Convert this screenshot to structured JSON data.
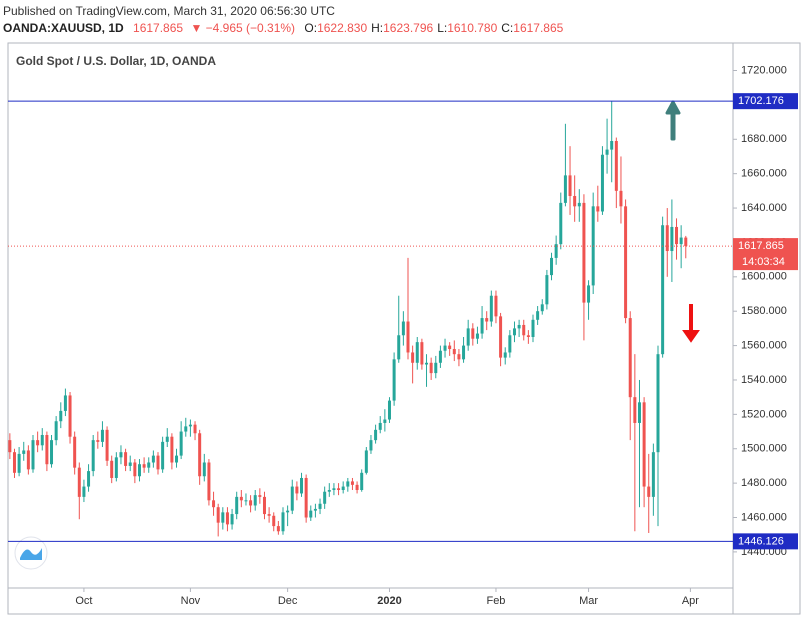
{
  "header": {
    "published": "Published on TradingView.com, March 31, 2020 06:56:30 UTC",
    "symbol": "OANDA:XAUUSD, 1D",
    "last": "1617.865",
    "change": "▼ −4.965 (−0.31%)",
    "ohlc": [
      {
        "label": "O:",
        "value": "1622.830"
      },
      {
        "label": "H:",
        "value": "1623.796"
      },
      {
        "label": "L:",
        "value": "1610.780"
      },
      {
        "label": "C:",
        "value": "1617.865"
      }
    ]
  },
  "chart_data": {
    "type": "candlestick",
    "title": "Gold Spot / U.S. Dollar, 1D, OANDA",
    "up_color": "#26a69a",
    "down_color": "#ef5350",
    "xlim": [
      -0.4,
      156.2
    ],
    "xticks": [
      {
        "value": 16,
        "label": "Oct"
      },
      {
        "value": 39,
        "label": "Nov"
      },
      {
        "value": 60,
        "label": "Dec"
      },
      {
        "value": 82,
        "label": "2020"
      },
      {
        "value": 105,
        "label": "Feb"
      },
      {
        "value": 125,
        "label": "Mar"
      },
      {
        "value": 147,
        "label": "Apr"
      }
    ],
    "ylim": [
      1419,
      1736
    ],
    "yticks": [
      {
        "value": 1440,
        "label": "1440.000"
      },
      {
        "value": 1460,
        "label": "1460.000"
      },
      {
        "value": 1480,
        "label": "1480.000"
      },
      {
        "value": 1500,
        "label": "1500.000"
      },
      {
        "value": 1520,
        "label": "1520.000"
      },
      {
        "value": 1540,
        "label": "1540.000"
      },
      {
        "value": 1560,
        "label": "1560.000"
      },
      {
        "value": 1580,
        "label": "1580.000"
      },
      {
        "value": 1600,
        "label": "1600.000"
      },
      {
        "value": 1620,
        "label": "1620.000"
      },
      {
        "value": 1640,
        "label": "1640.000"
      },
      {
        "value": 1660,
        "label": "1660.000"
      },
      {
        "value": 1680,
        "label": "1680.000"
      },
      {
        "value": 1700,
        "label": "1700.000"
      },
      {
        "value": 1720,
        "label": "1720.000"
      }
    ],
    "hlines": [
      {
        "value": 1702.176,
        "color": "#1f2cc4"
      },
      {
        "value": 1446.126,
        "color": "#1f2cc4"
      }
    ],
    "countdown": "14:03:34",
    "open": [
      1505,
      1498,
      1486,
      1497,
      1499,
      1488,
      1505,
      1502,
      1508,
      1491,
      1505,
      1516,
      1522,
      1531,
      1507,
      1489,
      1472,
      1478,
      1487,
      1505,
      1504,
      1511,
      1493,
      1483,
      1495,
      1498,
      1490,
      1492,
      1484,
      1491,
      1489,
      1492,
      1496,
      1488,
      1504,
      1507,
      1492,
      1496,
      1510,
      1513,
      1514,
      1509,
      1484,
      1492,
      1470,
      1466,
      1457,
      1463,
      1456,
      1462,
      1472,
      1470,
      1470,
      1467,
      1473,
      1472,
      1462,
      1461,
      1455,
      1452,
      1463,
      1464,
      1478,
      1474,
      1483,
      1460,
      1464,
      1465,
      1468,
      1475,
      1476,
      1477,
      1476,
      1478,
      1481,
      1479,
      1476,
      1486,
      1499,
      1505,
      1511,
      1515,
      1517,
      1528,
      1552,
      1566,
      1574,
      1556,
      1550,
      1562,
      1549,
      1550,
      1544,
      1550,
      1557,
      1560,
      1558,
      1555,
      1552,
      1560,
      1570,
      1564,
      1567,
      1576,
      1574,
      1589,
      1577,
      1553,
      1556,
      1566,
      1570,
      1572,
      1566,
      1565,
      1575,
      1580,
      1584,
      1601,
      1611,
      1619,
      1643,
      1659,
      1647,
      1641,
      1643,
      1585,
      1595,
      1641,
      1638,
      1671,
      1674,
      1679,
      1650,
      1641,
      1576,
      1530,
      1515,
      1527,
      1478,
      1472,
      1498,
      1555,
      1630,
      1615,
      1629,
      1619,
      1622.83
    ],
    "high": [
      1509,
      1500,
      1501,
      1504,
      1502,
      1508,
      1510,
      1512,
      1510,
      1508,
      1519,
      1527,
      1535,
      1533,
      1510,
      1492,
      1482,
      1491,
      1508,
      1510,
      1516,
      1513,
      1496,
      1498,
      1502,
      1500,
      1496,
      1494,
      1494,
      1495,
      1495,
      1499,
      1498,
      1507,
      1512,
      1509,
      1500,
      1516,
      1518,
      1517,
      1516,
      1511,
      1497,
      1494,
      1475,
      1468,
      1466,
      1466,
      1465,
      1475,
      1476,
      1474,
      1473,
      1476,
      1477,
      1475,
      1466,
      1463,
      1458,
      1466,
      1467,
      1482,
      1481,
      1486,
      1485,
      1467,
      1468,
      1471,
      1478,
      1480,
      1480,
      1480,
      1481,
      1483,
      1483,
      1481,
      1488,
      1501,
      1508,
      1514,
      1519,
      1523,
      1530,
      1556,
      1589,
      1580,
      1611,
      1560,
      1565,
      1564,
      1555,
      1553,
      1554,
      1560,
      1564,
      1562,
      1563,
      1558,
      1565,
      1575,
      1573,
      1571,
      1583,
      1580,
      1592,
      1592,
      1579,
      1559,
      1569,
      1574,
      1575,
      1575,
      1569,
      1578,
      1583,
      1587,
      1604,
      1614,
      1624,
      1649,
      1689,
      1676,
      1659,
      1651,
      1648,
      1598,
      1649,
      1653,
      1676,
      1692,
      1702,
      1681,
      1670,
      1645,
      1580,
      1555,
      1540,
      1530,
      1497,
      1503,
      1560,
      1635,
      1640,
      1645,
      1634,
      1630,
      1623.796
    ],
    "low": [
      1494,
      1483,
      1484,
      1493,
      1485,
      1486,
      1498,
      1499,
      1487,
      1489,
      1502,
      1512,
      1519,
      1503,
      1485,
      1459,
      1469,
      1475,
      1484,
      1500,
      1501,
      1490,
      1480,
      1481,
      1491,
      1487,
      1487,
      1480,
      1481,
      1486,
      1486,
      1489,
      1485,
      1486,
      1501,
      1488,
      1489,
      1494,
      1507,
      1507,
      1505,
      1479,
      1481,
      1467,
      1461,
      1449,
      1453,
      1452,
      1453,
      1459,
      1466,
      1467,
      1463,
      1464,
      1468,
      1459,
      1457,
      1452,
      1450,
      1450,
      1455,
      1462,
      1470,
      1472,
      1457,
      1458,
      1460,
      1462,
      1465,
      1472,
      1473,
      1473,
      1474,
      1475,
      1476,
      1474,
      1475,
      1485,
      1497,
      1503,
      1509,
      1510,
      1515,
      1525,
      1550,
      1560,
      1552,
      1538,
      1546,
      1546,
      1536,
      1540,
      1541,
      1547,
      1553,
      1554,
      1551,
      1548,
      1550,
      1557,
      1560,
      1561,
      1564,
      1569,
      1571,
      1573,
      1548,
      1549,
      1553,
      1562,
      1565,
      1563,
      1561,
      1562,
      1572,
      1578,
      1581,
      1598,
      1607,
      1616,
      1641,
      1636,
      1632,
      1632,
      1563,
      1575,
      1590,
      1632,
      1636,
      1660,
      1655,
      1640,
      1631,
      1573,
      1505,
      1452,
      1466,
      1466,
      1451,
      1461,
      1455,
      1553,
      1600,
      1597,
      1610,
      1605,
      1610.78
    ],
    "close": [
      1498,
      1486,
      1497,
      1499,
      1488,
      1505,
      1502,
      1508,
      1491,
      1505,
      1516,
      1522,
      1531,
      1507,
      1489,
      1472,
      1478,
      1487,
      1505,
      1504,
      1511,
      1493,
      1483,
      1495,
      1498,
      1490,
      1492,
      1484,
      1491,
      1489,
      1492,
      1496,
      1488,
      1504,
      1507,
      1492,
      1496,
      1510,
      1513,
      1514,
      1509,
      1484,
      1492,
      1470,
      1466,
      1457,
      1463,
      1456,
      1462,
      1472,
      1470,
      1470,
      1467,
      1473,
      1472,
      1462,
      1461,
      1455,
      1452,
      1463,
      1464,
      1478,
      1474,
      1483,
      1460,
      1464,
      1465,
      1468,
      1475,
      1476,
      1477,
      1476,
      1478,
      1481,
      1479,
      1476,
      1486,
      1499,
      1505,
      1511,
      1515,
      1517,
      1528,
      1552,
      1566,
      1574,
      1556,
      1550,
      1562,
      1549,
      1550,
      1544,
      1550,
      1557,
      1560,
      1558,
      1555,
      1552,
      1560,
      1570,
      1564,
      1567,
      1576,
      1574,
      1589,
      1577,
      1553,
      1556,
      1566,
      1570,
      1572,
      1566,
      1565,
      1575,
      1580,
      1584,
      1601,
      1611,
      1619,
      1643,
      1659,
      1647,
      1641,
      1643,
      1585,
      1595,
      1641,
      1638,
      1671,
      1674,
      1679,
      1650,
      1641,
      1576,
      1530,
      1515,
      1527,
      1478,
      1472,
      1498,
      1555,
      1630,
      1615,
      1629,
      1619,
      1622.83,
      1617.865
    ]
  }
}
